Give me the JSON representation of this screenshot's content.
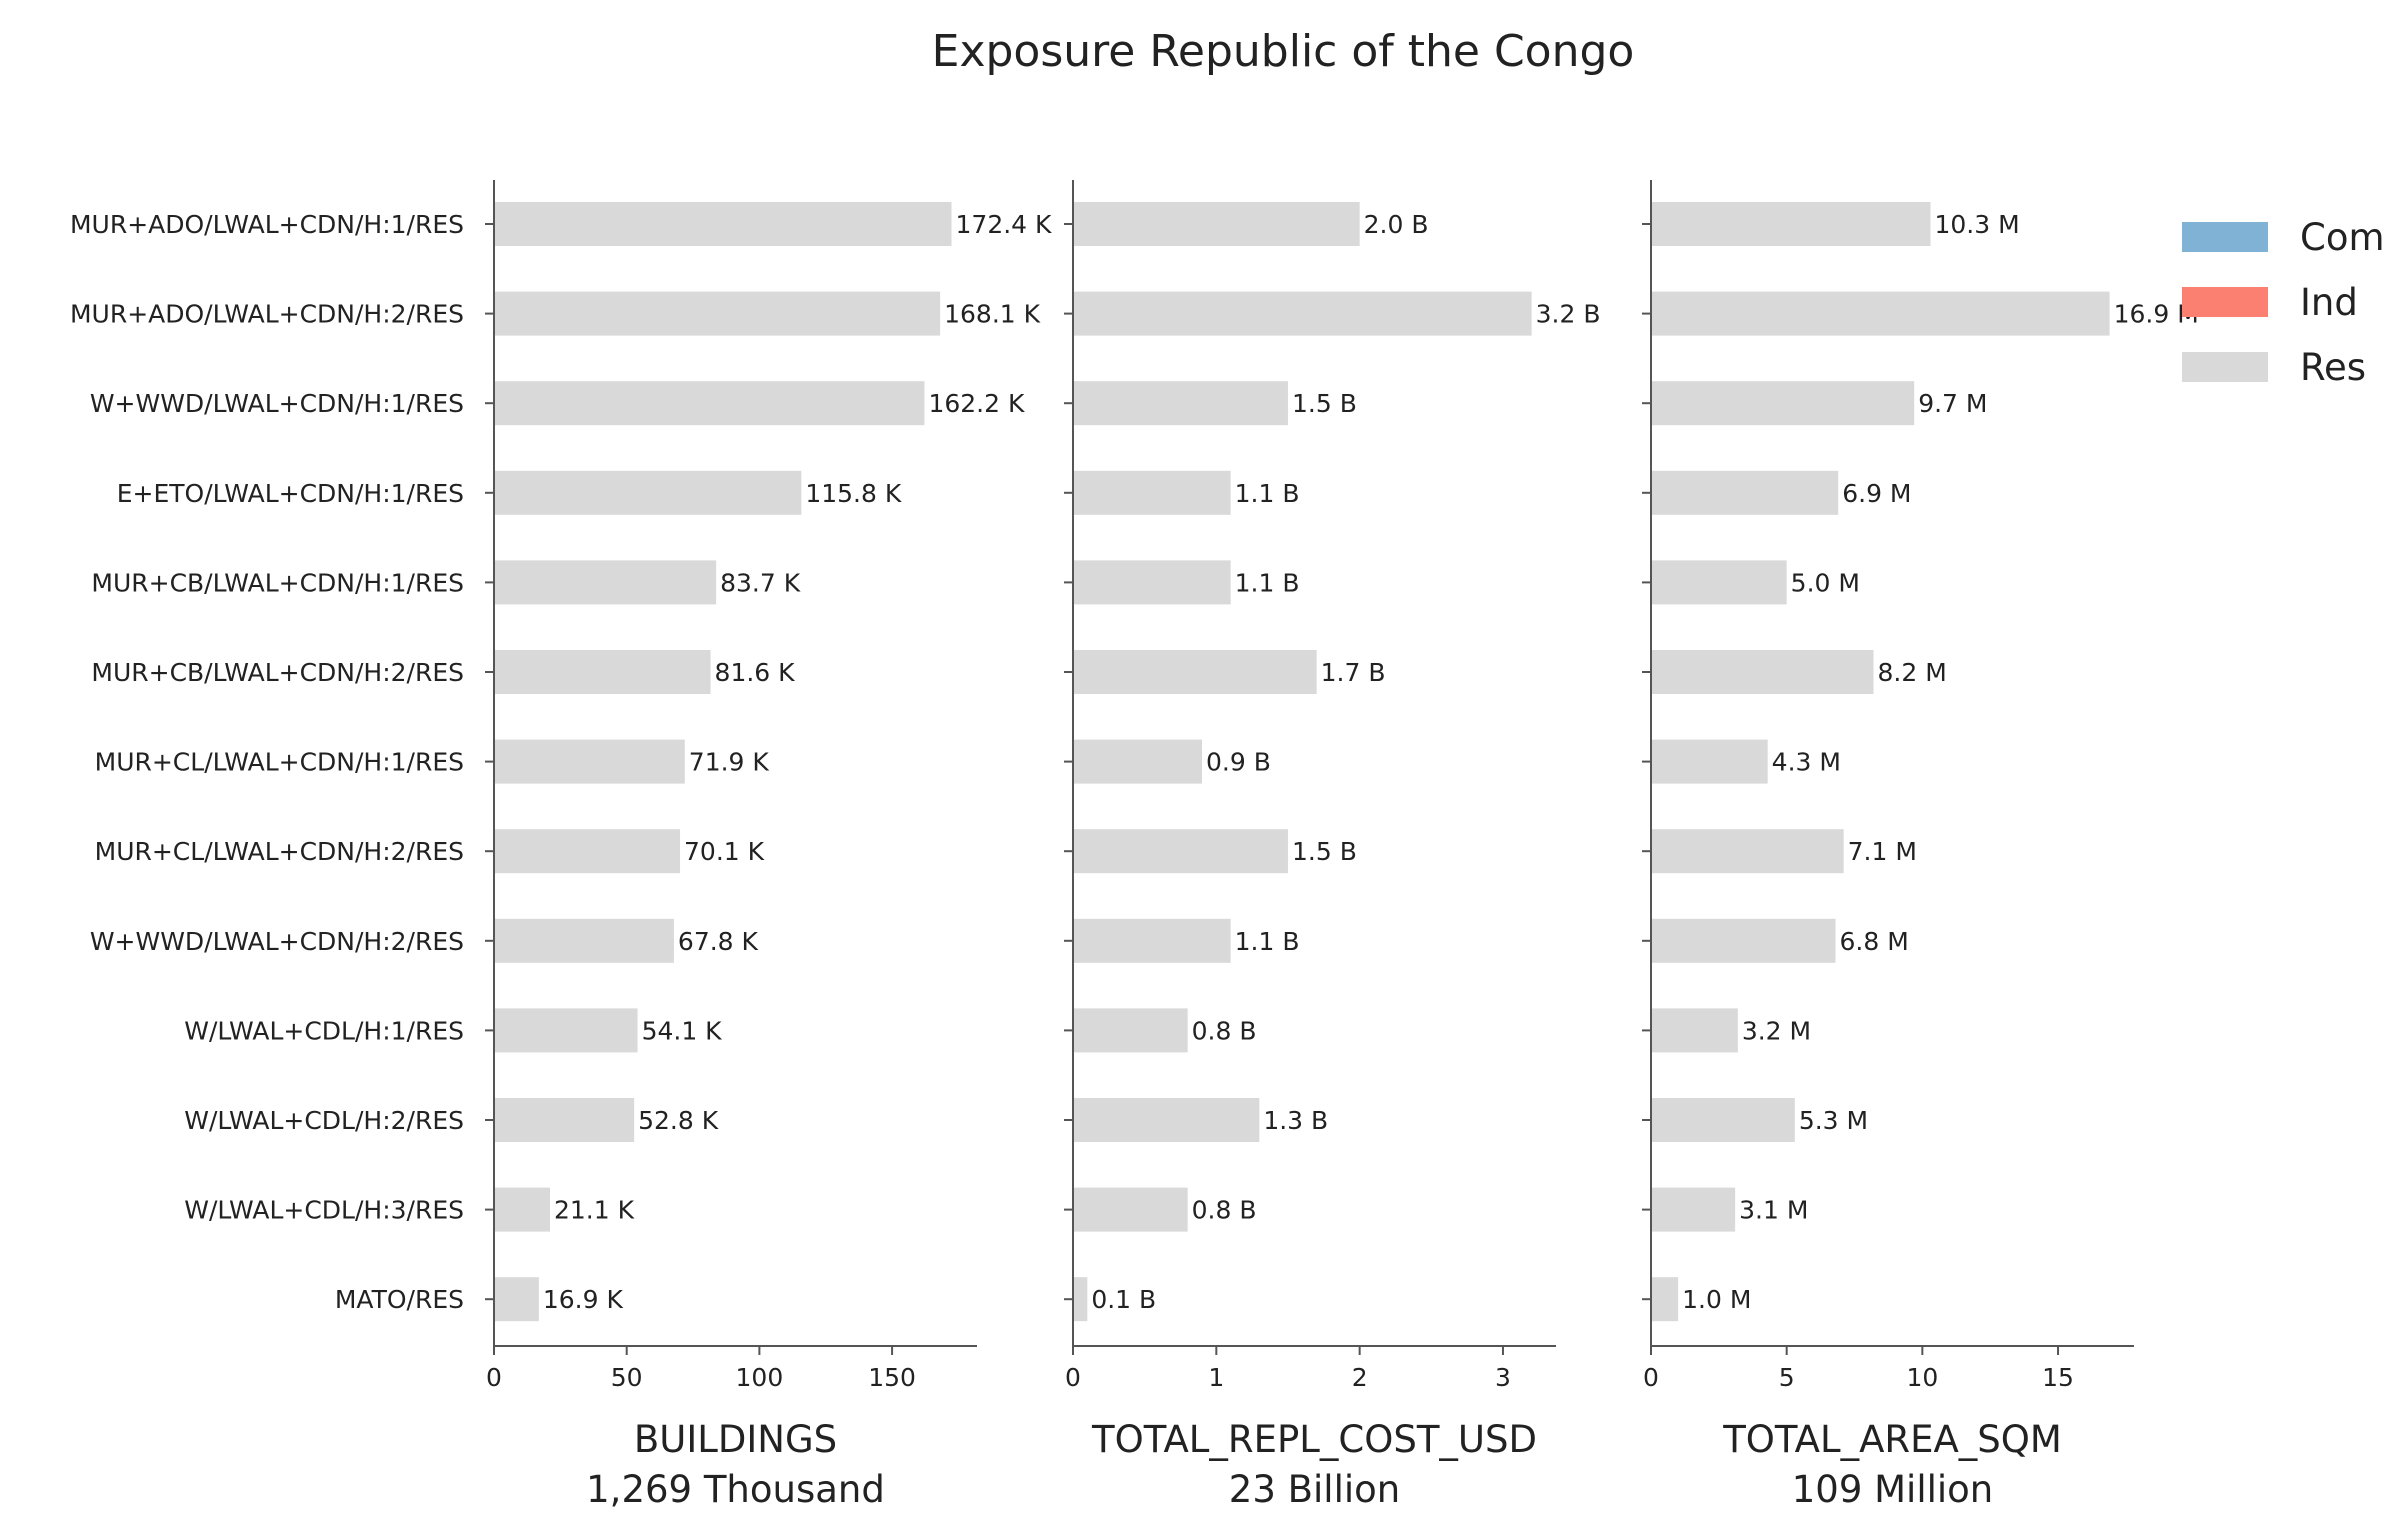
{
  "chart_data": {
    "type": "bar",
    "orientation": "horizontal",
    "title": "Exposure Republic of the Congo",
    "categories": [
      "MUR+ADO/LWAL+CDN/H:1/RES",
      "MUR+ADO/LWAL+CDN/H:2/RES",
      "W+WWD/LWAL+CDN/H:1/RES",
      "E+ETO/LWAL+CDN/H:1/RES",
      "MUR+CB/LWAL+CDN/H:1/RES",
      "MUR+CB/LWAL+CDN/H:2/RES",
      "MUR+CL/LWAL+CDN/H:1/RES",
      "MUR+CL/LWAL+CDN/H:2/RES",
      "W+WWD/LWAL+CDN/H:2/RES",
      "W/LWAL+CDL/H:1/RES",
      "W/LWAL+CDL/H:2/RES",
      "W/LWAL+CDL/H:3/RES",
      "MATO/RES"
    ],
    "legend": {
      "placement": "top-right",
      "entries": [
        {
          "name": "Com",
          "color": "#7fb2d5"
        },
        {
          "name": "Ind",
          "color": "#fb8072"
        },
        {
          "name": "Res",
          "color": "#d9d9d9"
        }
      ]
    },
    "panels": [
      {
        "xlabel": "BUILDINGS",
        "total": "1,269 Thousand",
        "xlim": [
          0,
          182
        ],
        "ticks": [
          0,
          50,
          100,
          150
        ],
        "tick_labels": [
          "0",
          "50",
          "100",
          "150"
        ],
        "values": [
          172.4,
          168.1,
          162.2,
          115.8,
          83.7,
          81.6,
          71.9,
          70.1,
          67.8,
          54.1,
          52.8,
          21.1,
          16.9
        ],
        "value_labels": [
          "172.4 K",
          "168.1 K",
          "162.2 K",
          "115.8 K",
          "83.7 K",
          "81.6 K",
          "71.9 K",
          "70.1 K",
          "67.8 K",
          "54.1 K",
          "52.8 K",
          "21.1 K",
          "16.9 K"
        ]
      },
      {
        "xlabel": "TOTAL_REPL_COST_USD",
        "total": "23 Billion",
        "xlim": [
          0,
          3.37
        ],
        "ticks": [
          0,
          1,
          2,
          3
        ],
        "tick_labels": [
          "0",
          "1",
          "2",
          "3"
        ],
        "values": [
          2.0,
          3.2,
          1.5,
          1.1,
          1.1,
          1.7,
          0.9,
          1.5,
          1.1,
          0.8,
          1.3,
          0.8,
          0.1
        ],
        "value_labels": [
          "2.0 B",
          "3.2 B",
          "1.5 B",
          "1.1 B",
          "1.1 B",
          "1.7 B",
          "0.9 B",
          "1.5 B",
          "1.1 B",
          "0.8 B",
          "1.3 B",
          "0.8 B",
          "0.1 B"
        ]
      },
      {
        "xlabel": "TOTAL_AREA_SQM",
        "total": "109 Million",
        "xlim": [
          0,
          17.8
        ],
        "ticks": [
          0,
          5,
          10,
          15
        ],
        "tick_labels": [
          "0",
          "5",
          "10",
          "15"
        ],
        "values": [
          10.3,
          16.9,
          9.7,
          6.9,
          5.0,
          8.2,
          4.3,
          7.1,
          6.8,
          3.2,
          5.3,
          3.1,
          1.0
        ],
        "value_labels": [
          "10.3 M",
          "16.9 M",
          "9.7 M",
          "6.9 M",
          "5.0 M",
          "8.2 M",
          "4.3 M",
          "7.1 M",
          "6.8 M",
          "3.2 M",
          "5.3 M",
          "3.1 M",
          "1.0 M"
        ]
      }
    ]
  }
}
